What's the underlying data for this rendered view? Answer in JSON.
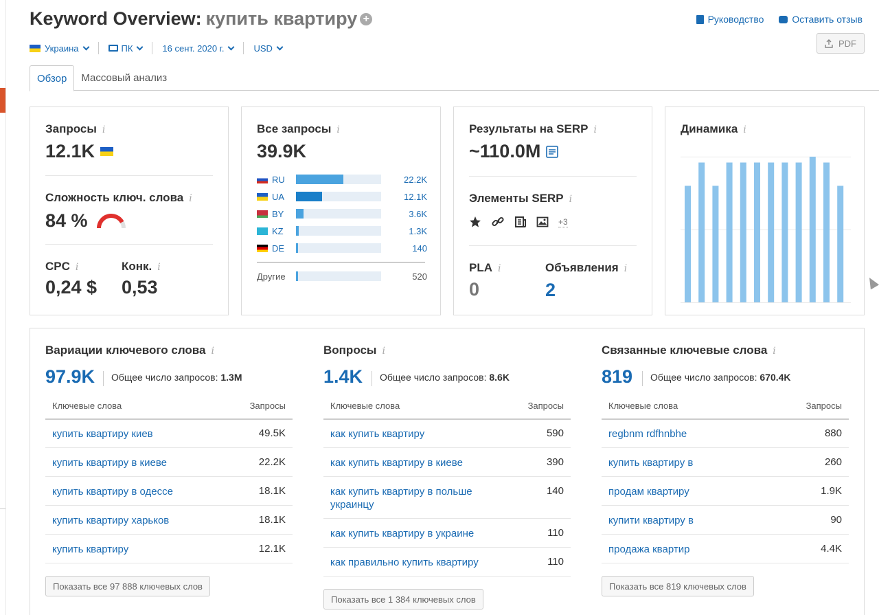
{
  "header": {
    "title": "Keyword Overview:",
    "keyword": "купить квартиру",
    "guide_link": "Руководство",
    "feedback_link": "Оставить отзыв",
    "pdf_label": "PDF"
  },
  "filters": {
    "country": "Украина",
    "device": "ПК",
    "date": "16 сент. 2020 г.",
    "currency": "USD"
  },
  "tabs": [
    {
      "label": "Обзор",
      "active": true
    },
    {
      "label": "Массовый анализ",
      "active": false
    }
  ],
  "volume_card": {
    "title": "Запросы",
    "value": "12.1K",
    "kd_title": "Сложность ключ. слова",
    "kd_value": "84 %",
    "kd_level": 0.84,
    "cpc_title": "CPC",
    "cpc_value": "0,24 $",
    "comp_title": "Конк.",
    "comp_value": "0,53"
  },
  "global_card": {
    "title": "Все запросы",
    "value": "39.9K",
    "countries": [
      {
        "code": "RU",
        "value": "22.2K",
        "share": 0.56,
        "flag": "ru"
      },
      {
        "code": "UA",
        "value": "12.1K",
        "share": 0.31,
        "flag": "ua"
      },
      {
        "code": "BY",
        "value": "3.6K",
        "share": 0.09,
        "flag": "by"
      },
      {
        "code": "KZ",
        "value": "1.3K",
        "share": 0.03,
        "flag": "kz"
      },
      {
        "code": "DE",
        "value": "140",
        "share": 0.01,
        "flag": "de"
      }
    ],
    "other_label": "Другие",
    "other_value": "520",
    "other_share": 0.01
  },
  "serp_card": {
    "title": "Результаты на SERP",
    "value": "~110.0M",
    "features_title": "Элементы SERP",
    "features_icons": [
      "star-icon",
      "link-icon",
      "news-icon",
      "image-icon"
    ],
    "features_more": "+3",
    "pla_title": "PLA",
    "pla_value": "0",
    "ads_title": "Объявления",
    "ads_value": "2"
  },
  "trend_card": {
    "title": "Динамика",
    "bars": [
      0.8,
      0.96,
      0.8,
      0.96,
      0.96,
      0.96,
      0.96,
      0.96,
      0.96,
      1.0,
      0.96,
      0.8
    ]
  },
  "variations": {
    "title": "Вариации ключевого слова",
    "count": "97.9K",
    "total_label": "Общее число запросов:",
    "total_value": "1.3M",
    "col_keywords": "Ключевые слова",
    "col_volume": "Запросы",
    "rows": [
      {
        "k": "купить квартиру киев",
        "v": "49.5K"
      },
      {
        "k": "купить квартиру в киеве",
        "v": "22.2K"
      },
      {
        "k": "купить квартиру в одессе",
        "v": "18.1K"
      },
      {
        "k": "купить квартиру харьков",
        "v": "18.1K"
      },
      {
        "k": "купить квартиру",
        "v": "12.1K"
      }
    ],
    "show_all": "Показать все 97 888 ключевых слов"
  },
  "questions": {
    "title": "Вопросы",
    "count": "1.4K",
    "total_label": "Общее число запросов:",
    "total_value": "8.6K",
    "col_keywords": "Ключевые слова",
    "col_volume": "Запросы",
    "rows": [
      {
        "k": "как купить квартиру",
        "v": "590"
      },
      {
        "k": "как купить квартиру в киеве",
        "v": "390"
      },
      {
        "k": "как купить квартиру в польше украинцу",
        "v": "140"
      },
      {
        "k": "как купить квартиру в украине",
        "v": "110"
      },
      {
        "k": "как правильно купить квартиру",
        "v": "110"
      }
    ],
    "show_all": "Показать все 1 384 ключевых слов"
  },
  "related": {
    "title": "Связанные ключевые слова",
    "count": "819",
    "total_label": "Общее число запросов:",
    "total_value": "670.4K",
    "col_keywords": "Ключевые слова",
    "col_volume": "Запросы",
    "rows": [
      {
        "k": "regbnm rdfhnbhe",
        "v": "880"
      },
      {
        "k": "купить квартиру в",
        "v": "260"
      },
      {
        "k": "продам квартиру",
        "v": "1.9K"
      },
      {
        "k": "купити квартиру в",
        "v": "90"
      },
      {
        "k": "продажа квартир",
        "v": "4.4K"
      }
    ],
    "show_all": "Показать все 819 ключевых слов"
  }
}
